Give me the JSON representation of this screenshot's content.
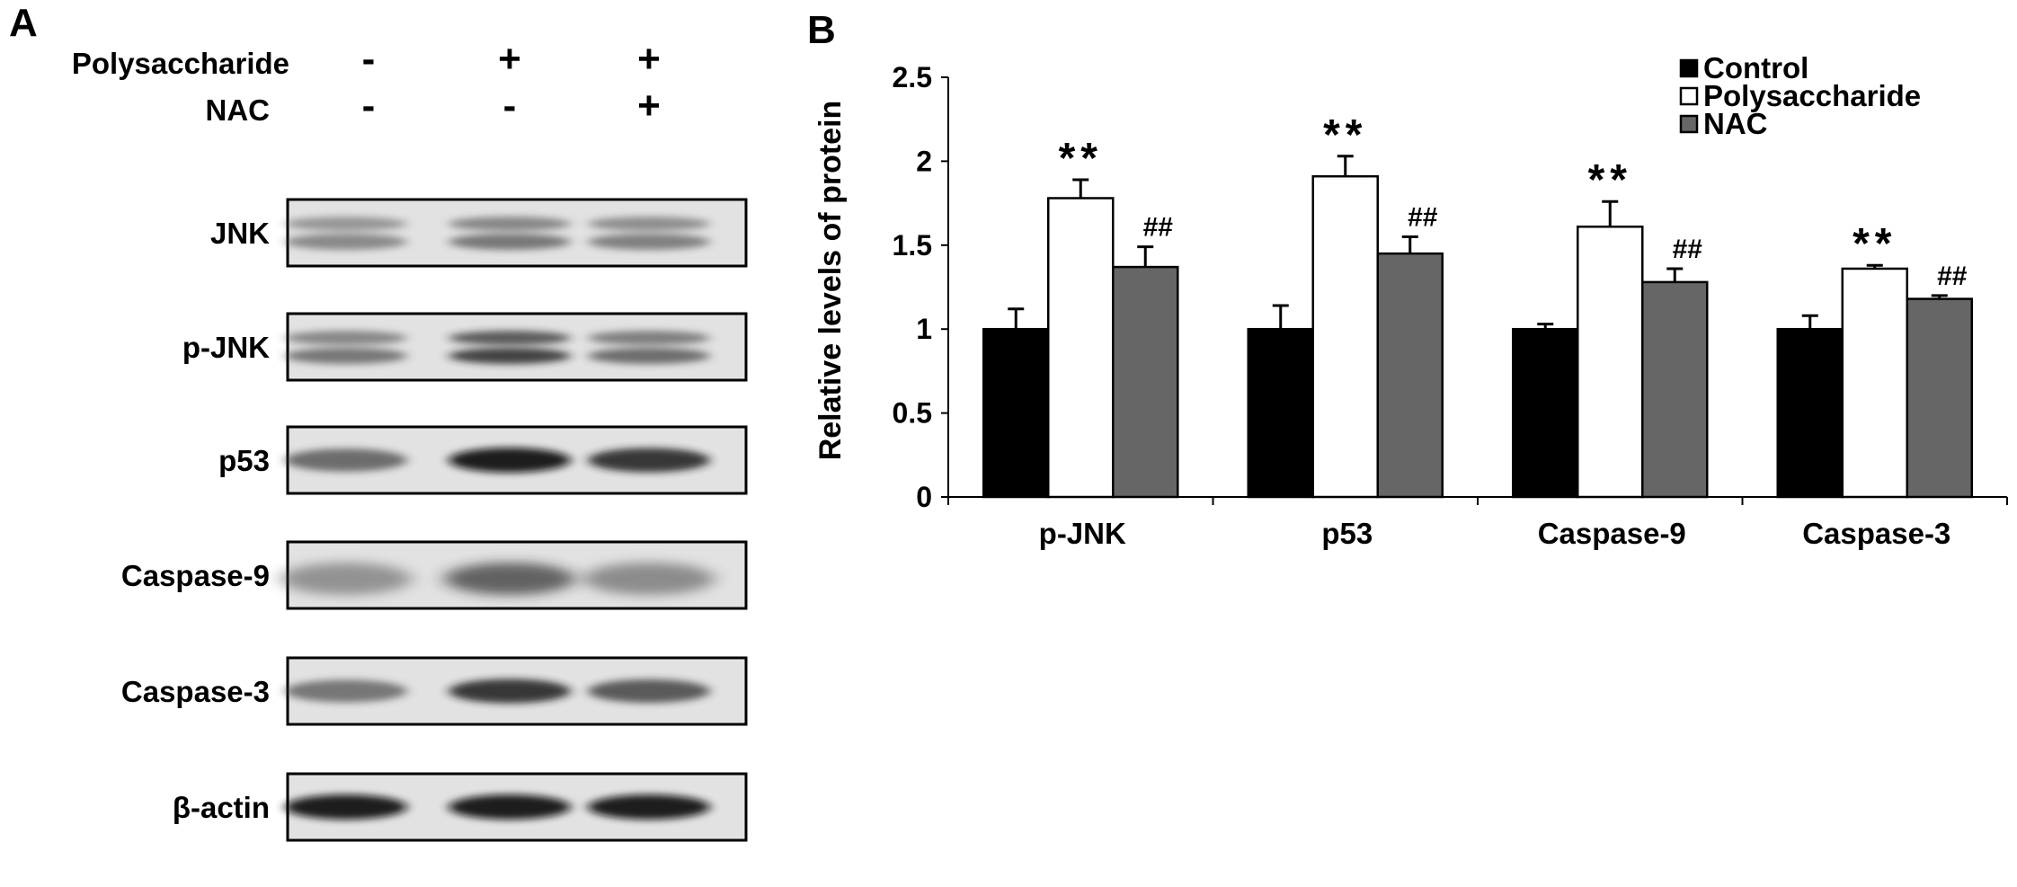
{
  "panel_a": {
    "letter": "A",
    "treatments": [
      {
        "name": "Polysaccharide",
        "marks": [
          "-",
          "+",
          "+"
        ]
      },
      {
        "name": "NAC",
        "marks": [
          "-",
          "-",
          "+"
        ]
      }
    ],
    "blots": [
      {
        "label": "JNK",
        "kind": "doublet-lower",
        "intensity": [
          0.45,
          0.55,
          0.5
        ]
      },
      {
        "label": "p-JNK",
        "kind": "doublet",
        "intensity": [
          0.55,
          0.8,
          0.6
        ]
      },
      {
        "label": "p53",
        "kind": "single",
        "intensity": [
          0.6,
          0.95,
          0.85
        ]
      },
      {
        "label": "Caspase-9",
        "kind": "smear",
        "intensity": [
          0.5,
          0.8,
          0.55
        ]
      },
      {
        "label": "Caspase-3",
        "kind": "single",
        "intensity": [
          0.55,
          0.85,
          0.7
        ]
      },
      {
        "label": "β-actin",
        "kind": "single",
        "intensity": [
          0.95,
          0.95,
          0.95
        ]
      }
    ]
  },
  "panel_b": {
    "letter": "B"
  },
  "chart_data": {
    "type": "bar",
    "title": "",
    "xlabel": "",
    "ylabel": "Relative levels of protein",
    "ylim": [
      0,
      2.5
    ],
    "yticks": [
      "0",
      "0.5",
      "1",
      "1.5",
      "2",
      "2.5"
    ],
    "categories": [
      "p-JNK",
      "p53",
      "Caspase-9",
      "Caspase-3"
    ],
    "series": [
      {
        "name": "Control",
        "values": [
          1.0,
          1.0,
          1.0,
          1.0
        ],
        "errors": [
          0.12,
          0.14,
          0.03,
          0.08
        ],
        "color": "#000000",
        "annotations": [
          "",
          "",
          "",
          ""
        ]
      },
      {
        "name": "Polysaccharide",
        "values": [
          1.78,
          1.91,
          1.61,
          1.36
        ],
        "errors": [
          0.11,
          0.12,
          0.15,
          0.02
        ],
        "color": "#ffffff",
        "annotations": [
          "**",
          "**",
          "**",
          "**"
        ]
      },
      {
        "name": "NAC",
        "values": [
          1.37,
          1.45,
          1.28,
          1.18
        ],
        "errors": [
          0.12,
          0.1,
          0.08,
          0.02
        ],
        "color": "#666666",
        "annotations": [
          "##",
          "##",
          "##",
          "##"
        ]
      }
    ],
    "legend_position": "top-right",
    "grid": false
  }
}
